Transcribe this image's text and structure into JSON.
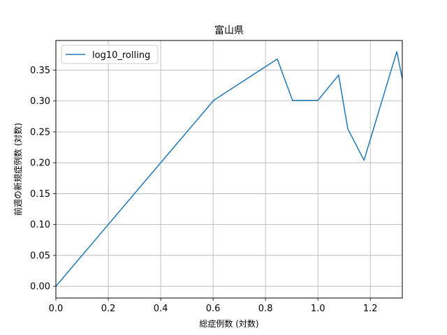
{
  "chart_data": {
    "type": "line",
    "title": "富山県",
    "xlabel": "総症例数 (対数)",
    "ylabel": "前週の新規症例数 (対数)",
    "xlim": [
      0.0,
      1.322
    ],
    "ylim": [
      -0.019,
      0.398
    ],
    "xticks": [
      "0.0",
      "0.2",
      "0.4",
      "0.6",
      "0.8",
      "1.0",
      "1.2"
    ],
    "yticks": [
      "0.00",
      "0.05",
      "0.10",
      "0.15",
      "0.20",
      "0.25",
      "0.30",
      "0.35"
    ],
    "grid": true,
    "legend_position": "top-left",
    "series": [
      {
        "name": "log10_rolling",
        "color": "#1f77b4",
        "x": [
          0.0,
          0.602,
          0.845,
          0.903,
          1.0,
          1.079,
          1.114,
          1.176,
          1.301,
          1.322
        ],
        "y": [
          0.0,
          0.301,
          0.368,
          0.301,
          0.301,
          0.342,
          0.255,
          0.204,
          0.38,
          0.336
        ]
      }
    ]
  }
}
